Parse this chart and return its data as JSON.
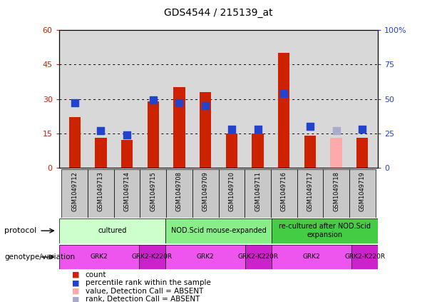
{
  "title": "GDS4544 / 215139_at",
  "samples": [
    "GSM1049712",
    "GSM1049713",
    "GSM1049714",
    "GSM1049715",
    "GSM1049708",
    "GSM1049709",
    "GSM1049710",
    "GSM1049711",
    "GSM1049716",
    "GSM1049717",
    "GSM1049718",
    "GSM1049719"
  ],
  "count_values": [
    22,
    13,
    12,
    29,
    35,
    33,
    15,
    15,
    50,
    14,
    13,
    13
  ],
  "rank_values": [
    47,
    27,
    24,
    49,
    47,
    45,
    28,
    28,
    54,
    30,
    27,
    28
  ],
  "count_absent": [
    false,
    false,
    false,
    false,
    false,
    false,
    false,
    false,
    false,
    false,
    true,
    false
  ],
  "rank_absent": [
    false,
    false,
    false,
    false,
    false,
    false,
    false,
    false,
    false,
    false,
    true,
    false
  ],
  "ylim_left": [
    0,
    60
  ],
  "ylim_right": [
    0,
    100
  ],
  "yticks_left": [
    0,
    15,
    30,
    45,
    60
  ],
  "yticks_right": [
    0,
    25,
    50,
    75,
    100
  ],
  "ytick_labels_left": [
    "0",
    "15",
    "30",
    "45",
    "60"
  ],
  "ytick_labels_right": [
    "0",
    "25",
    "50",
    "75",
    "100%"
  ],
  "grid_lines": [
    15,
    30,
    45
  ],
  "bar_color_normal": "#cc2200",
  "bar_color_absent": "#ffaaaa",
  "rank_color_normal": "#2244cc",
  "rank_color_absent": "#aaaacc",
  "protocol_groups": [
    {
      "label": "cultured",
      "start": 0,
      "end": 4,
      "color": "#ccffcc"
    },
    {
      "label": "NOD.Scid mouse-expanded",
      "start": 4,
      "end": 8,
      "color": "#88ee88"
    },
    {
      "label": "re-cultured after NOD.Scid\nexpansion",
      "start": 8,
      "end": 12,
      "color": "#44cc44"
    }
  ],
  "geno_segs": [
    {
      "start": 0,
      "end": 3,
      "label": "GRK2",
      "color": "#ee55ee"
    },
    {
      "start": 3,
      "end": 4,
      "label": "GRK2-K220R",
      "color": "#cc22cc"
    },
    {
      "start": 4,
      "end": 7,
      "label": "GRK2",
      "color": "#ee55ee"
    },
    {
      "start": 7,
      "end": 8,
      "label": "GRK2-K220R",
      "color": "#cc22cc"
    },
    {
      "start": 8,
      "end": 11,
      "label": "GRK2",
      "color": "#ee55ee"
    },
    {
      "start": 11,
      "end": 12,
      "label": "GRK2-K220R",
      "color": "#cc22cc"
    }
  ],
  "legend_items": [
    {
      "label": "count",
      "color": "#cc2200"
    },
    {
      "label": "percentile rank within the sample",
      "color": "#2244cc"
    },
    {
      "label": "value, Detection Call = ABSENT",
      "color": "#ffaaaa"
    },
    {
      "label": "rank, Detection Call = ABSENT",
      "color": "#aaaacc"
    }
  ],
  "bg_color": "#ffffff",
  "plot_bg": "#d8d8d8",
  "bar_width": 0.45,
  "rank_marker_size": 45,
  "label_cell_bg": "#c8c8c8"
}
